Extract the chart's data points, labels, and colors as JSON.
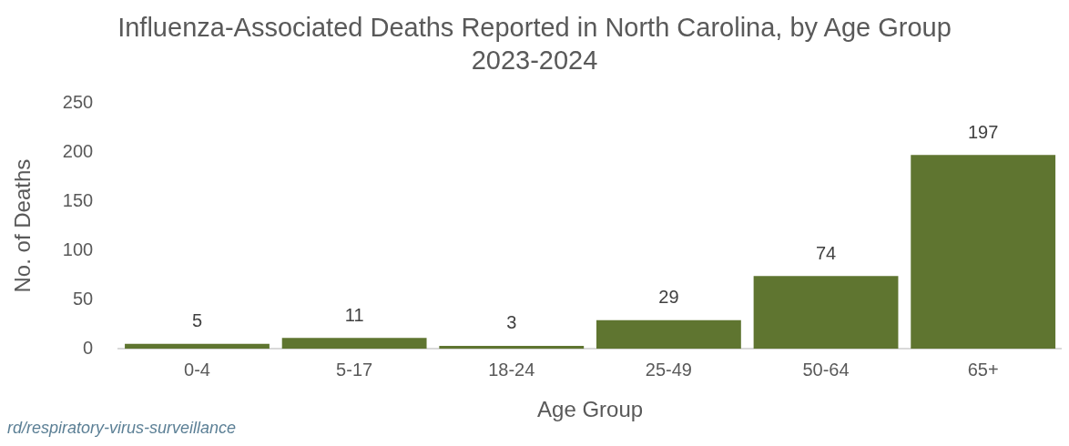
{
  "chart_data": {
    "type": "bar",
    "title": "Influenza-Associated Deaths Reported in North Carolina, by Age Group 2023-2024",
    "xlabel": "Age Group",
    "ylabel": "No. of Deaths",
    "categories": [
      "0-4",
      "5-17",
      "18-24",
      "25-49",
      "50-64",
      "65+"
    ],
    "values": [
      5,
      11,
      3,
      29,
      74,
      197
    ],
    "color": "#5f7530",
    "ylim": [
      0,
      250
    ],
    "yticks": [
      0,
      50,
      100,
      150,
      200,
      250
    ],
    "grid": false,
    "data_labels": true,
    "annotations": [
      "rd/respiratory-virus-surveillance"
    ]
  }
}
